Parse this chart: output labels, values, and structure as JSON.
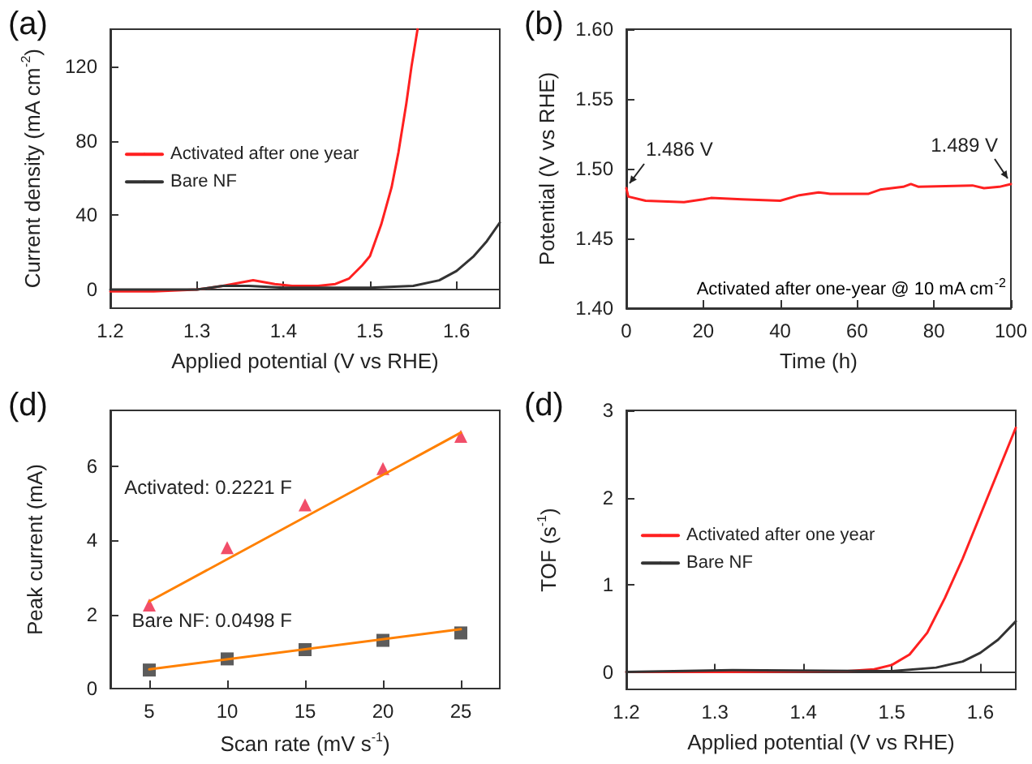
{
  "chart_data": [
    {
      "type": "line",
      "title": "(a)",
      "xlabel": "Applied potential (V vs RHE)",
      "ylabel": "Current density (mA cm$^{-2}$)",
      "xlim": [
        1.2,
        1.65
      ],
      "xticks": [
        1.2,
        1.3,
        1.4,
        1.5,
        1.6
      ],
      "ylim": [
        -10,
        140
      ],
      "yticks": [
        0,
        40,
        80,
        120
      ],
      "legend": "left",
      "marker": "none",
      "series": [
        {
          "name": "Activated after one year",
          "color": "#ff2020",
          "x": [
            1.2,
            1.25,
            1.3,
            1.33,
            1.365,
            1.39,
            1.41,
            1.44,
            1.46,
            1.476,
            1.491,
            1.5,
            1.513,
            1.525,
            1.533,
            1.542,
            1.548,
            1.555
          ],
          "values": [
            -1,
            -1,
            0,
            2,
            5,
            3,
            2,
            2,
            3,
            6,
            13,
            18,
            35,
            55,
            74,
            100,
            120,
            140
          ]
        },
        {
          "name": "Bare NF",
          "color": "#333333",
          "x": [
            1.2,
            1.3,
            1.33,
            1.36,
            1.4,
            1.5,
            1.55,
            1.58,
            1.6,
            1.62,
            1.635,
            1.65
          ],
          "values": [
            0,
            0,
            2,
            2,
            1,
            1,
            2,
            5,
            10,
            18,
            26,
            36
          ]
        }
      ]
    },
    {
      "type": "line",
      "title": "(b)",
      "xlabel": "Time (h)",
      "ylabel": "Potential (V vs RHE)",
      "xlim": [
        0,
        100
      ],
      "xticks": [
        0,
        20,
        40,
        60,
        80,
        100
      ],
      "ylim": [
        1.4,
        1.6
      ],
      "yticks": [
        {
          "value": 1.4,
          "label": "1.40"
        },
        {
          "value": 1.45,
          "label": "1.45"
        },
        {
          "value": 1.5,
          "label": "1.50"
        },
        {
          "value": 1.55,
          "label": "1.55"
        },
        {
          "value": 1.6,
          "label": "1.60"
        }
      ],
      "marker": "none",
      "annotations": [
        {
          "text": "1.486 V",
          "x": 0,
          "y": 1.486
        },
        {
          "text": "1.489 V",
          "x": 100,
          "y": 1.489
        },
        "Activated after one-year @ 10 mA cm$^{-2}$"
      ],
      "series": [
        {
          "color": "#ff2020",
          "x": [
            0,
            0.5,
            5,
            15,
            20,
            22,
            30,
            40,
            45,
            50,
            53,
            63,
            66,
            72,
            74,
            76,
            90,
            93,
            97,
            100
          ],
          "values": [
            1.486,
            1.48,
            1.477,
            1.476,
            1.478,
            1.479,
            1.478,
            1.477,
            1.481,
            1.483,
            1.482,
            1.482,
            1.485,
            1.487,
            1.489,
            1.487,
            1.488,
            1.486,
            1.487,
            1.489
          ]
        }
      ]
    },
    {
      "type": "scatter",
      "title": "(d)",
      "xlabel": "Scan rate (mV s$^{-1}$)",
      "ylabel": "Peak current (mA)",
      "xlim": [
        2.5,
        27.5
      ],
      "xticks": [
        5,
        10,
        15,
        20,
        25
      ],
      "ylim": [
        0,
        7.5
      ],
      "yticks": [
        0,
        2,
        4,
        6
      ],
      "series": [
        {
          "color": "#ee2244",
          "marker": "triangle",
          "x": [
            5,
            10,
            15,
            20,
            25
          ],
          "values": [
            2.25,
            3.8,
            4.95,
            5.93,
            6.8
          ]
        },
        {
          "color": "#333333",
          "marker": "square",
          "x": [
            5,
            10,
            15,
            20,
            25
          ],
          "values": [
            0.5,
            0.8,
            1.05,
            1.3,
            1.5
          ]
        },
        {
          "type": "line",
          "name": "Activated: 0.2221 F",
          "color": "#ff8000",
          "marker": "none",
          "x": [
            5,
            25
          ],
          "values": [
            2.35,
            6.9
          ]
        },
        {
          "type": "line",
          "name": "Bare NF: 0.0498 F",
          "color": "#ff8000",
          "marker": "none",
          "x": [
            5,
            25
          ],
          "values": [
            0.52,
            1.6
          ]
        }
      ]
    },
    {
      "type": "line",
      "title": "(d)",
      "xlabel": "Applied potential (V vs RHE)",
      "ylabel": "TOF (s$^{-1}$)",
      "xlim": [
        1.2,
        1.64
      ],
      "xticks": [
        1.2,
        1.3,
        1.4,
        1.5,
        1.6
      ],
      "ylim": [
        -0.2,
        3
      ],
      "yticks": [
        0,
        1,
        2,
        3
      ],
      "legend": "left",
      "marker": "none",
      "series": [
        {
          "name": "Activated after one year",
          "color": "#ff2020",
          "x": [
            1.2,
            1.3,
            1.45,
            1.48,
            1.5,
            1.52,
            1.54,
            1.56,
            1.58,
            1.6,
            1.62,
            1.64
          ],
          "values": [
            0,
            0,
            0.01,
            0.03,
            0.08,
            0.2,
            0.45,
            0.85,
            1.3,
            1.8,
            2.3,
            2.8
          ]
        },
        {
          "name": "Bare NF",
          "color": "#333333",
          "x": [
            1.2,
            1.32,
            1.5,
            1.55,
            1.58,
            1.6,
            1.62,
            1.64
          ],
          "values": [
            0,
            0.02,
            0.01,
            0.05,
            0.12,
            0.22,
            0.37,
            0.58
          ]
        }
      ]
    }
  ]
}
